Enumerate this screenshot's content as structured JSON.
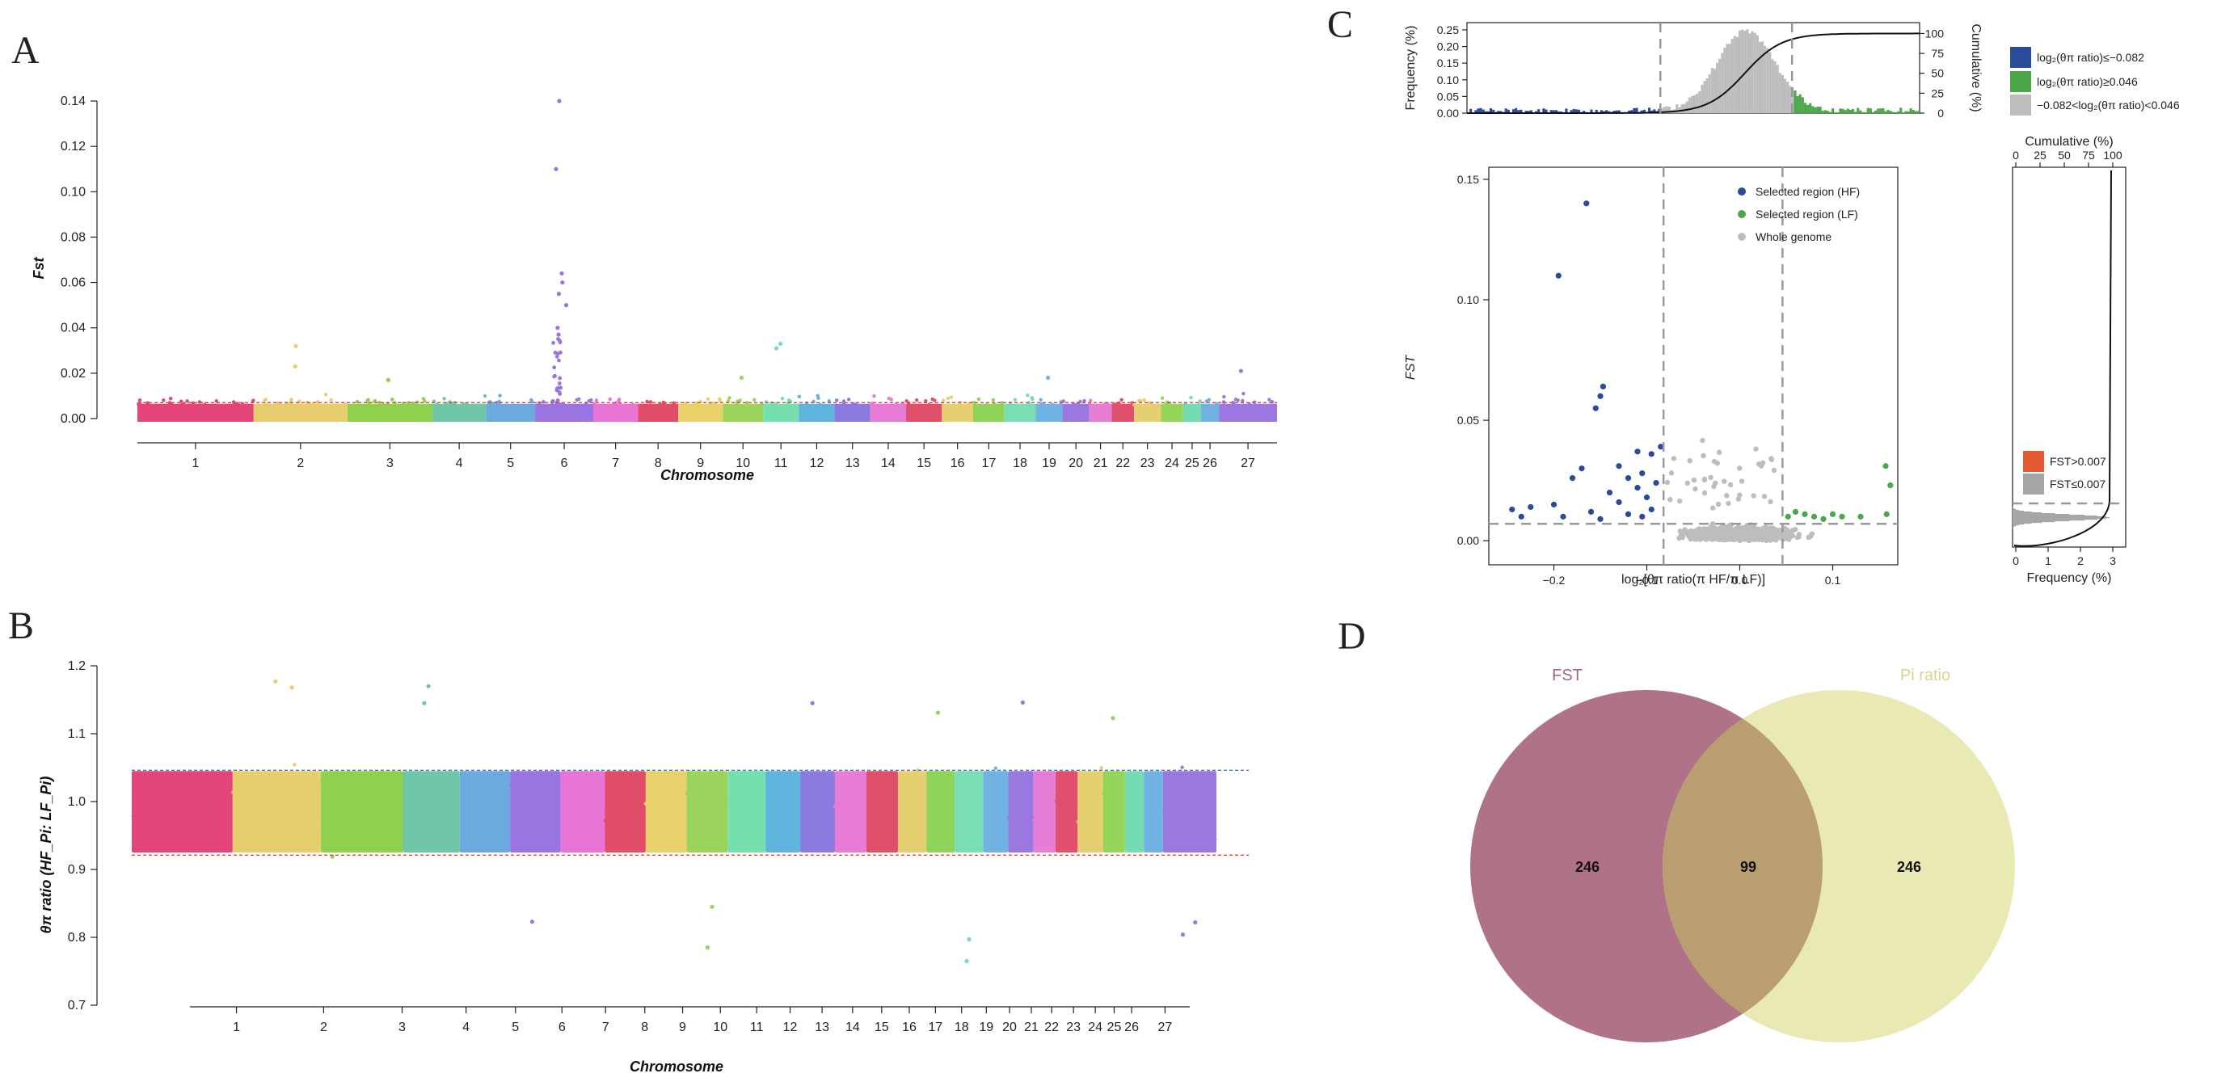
{
  "colors": {
    "chrom": [
      "#e3457a",
      "#e6cd6e",
      "#8fd14f",
      "#6fc7a8",
      "#6ca9df",
      "#9a74e0",
      "#e875d6",
      "#df4d69",
      "#e8d06a",
      "#9bd45d",
      "#76dfb0",
      "#5fb4de",
      "#8c7ae0",
      "#e77bd5",
      "#df4f6a",
      "#e6cf70",
      "#8fd45a",
      "#78dfb4",
      "#70b2e2",
      "#9b78e0",
      "#e77ed6",
      "#e0506c",
      "#e6cf70",
      "#94d55a",
      "#74dcb2",
      "#70b2e2",
      "#9b78e0"
    ],
    "hf": "#2a4a9a",
    "lf": "#4aa84a",
    "whole": "#bdbdbd",
    "fst_high": "#e25a33",
    "fst_low": "#a6a6a6",
    "venn_fst": "#a8667c",
    "venn_pi": "#e2e19a",
    "venn_overlap": "#b99e72",
    "threshold_red": "#e04040",
    "threshold_blue": "#4a7abf"
  },
  "panels": {
    "A": {
      "letter": "A"
    },
    "B": {
      "letter": "B"
    },
    "C": {
      "letter": "C"
    },
    "D": {
      "letter": "D"
    }
  },
  "chart_data": [
    {
      "id": "A",
      "type": "scatter",
      "subtype": "manhattan",
      "xlabel": "Chromosome",
      "ylabel": "Fst",
      "ylim": [
        0,
        0.14
      ],
      "yticks": [
        "0.00",
        "0.02",
        "0.04",
        "0.06",
        "0.08",
        "0.10",
        "0.12",
        "0.14"
      ],
      "categories": [
        "1",
        "2",
        "3",
        "4",
        "5",
        "6",
        "7",
        "8",
        "9",
        "10",
        "11",
        "12",
        "13",
        "14",
        "15",
        "16",
        "17",
        "18",
        "19",
        "20",
        "21",
        "22",
        "23",
        "24",
        "25",
        "26",
        "27"
      ],
      "threshold": 0.007,
      "grid": false,
      "peaks": [
        {
          "chrom": "6",
          "value": 0.14
        },
        {
          "chrom": "6",
          "value": 0.11
        },
        {
          "chrom": "6",
          "value": 0.064
        },
        {
          "chrom": "6",
          "value": 0.06
        },
        {
          "chrom": "6",
          "value": 0.055
        },
        {
          "chrom": "6",
          "value": 0.05
        },
        {
          "chrom": "6",
          "value": 0.04
        },
        {
          "chrom": "6",
          "value": 0.037
        },
        {
          "chrom": "2",
          "value": 0.032
        },
        {
          "chrom": "2",
          "value": 0.023
        },
        {
          "chrom": "11",
          "value": 0.033
        },
        {
          "chrom": "11",
          "value": 0.031
        },
        {
          "chrom": "27",
          "value": 0.021
        },
        {
          "chrom": "10",
          "value": 0.018
        },
        {
          "chrom": "19",
          "value": 0.018
        },
        {
          "chrom": "3",
          "value": 0.017
        }
      ]
    },
    {
      "id": "B",
      "type": "scatter",
      "subtype": "manhattan",
      "xlabel": "Chromosome",
      "ylabel": "θπ ratio (HF_Pi: LF_Pi)",
      "ylim": [
        0.7,
        1.2
      ],
      "yticks": [
        "0.7",
        "0.8",
        "0.9",
        "1.0",
        "1.1",
        "1.2"
      ],
      "categories": [
        "1",
        "2",
        "3",
        "4",
        "5",
        "6",
        "7",
        "8",
        "9",
        "10",
        "11",
        "12",
        "13",
        "14",
        "15",
        "16",
        "17",
        "18",
        "19",
        "20",
        "21",
        "22",
        "23",
        "24",
        "25",
        "26",
        "27"
      ],
      "threshold_upper": 1.046,
      "threshold_lower": 0.921,
      "grid": false,
      "outliers": [
        {
          "chrom": "2",
          "value": 1.177
        },
        {
          "chrom": "2",
          "value": 1.168
        },
        {
          "chrom": "4",
          "value": 1.17
        },
        {
          "chrom": "4",
          "value": 1.145
        },
        {
          "chrom": "13",
          "value": 1.145
        },
        {
          "chrom": "20",
          "value": 1.146
        },
        {
          "chrom": "17",
          "value": 1.131
        },
        {
          "chrom": "24",
          "value": 1.123
        },
        {
          "chrom": "10",
          "value": 0.845
        },
        {
          "chrom": "10",
          "value": 0.785
        },
        {
          "chrom": "18",
          "value": 0.797
        },
        {
          "chrom": "18",
          "value": 0.765
        },
        {
          "chrom": "27",
          "value": 0.804
        },
        {
          "chrom": "6",
          "value": 0.823
        },
        {
          "chrom": "27",
          "value": 0.822
        }
      ]
    },
    {
      "id": "C_main",
      "type": "scatter",
      "xlabel": "log₂[θπ ratio(π HF/π LF)]",
      "ylabel": "FST",
      "xlim": [
        -0.27,
        0.17
      ],
      "ylim": [
        -0.01,
        0.155
      ],
      "xticks": [
        "−0.2",
        "−0.1",
        "0.0",
        "0.1"
      ],
      "yticks": [
        "0.00",
        "0.05",
        "0.10",
        "0.15"
      ],
      "vlines": [
        -0.082,
        0.046
      ],
      "hline": 0.007,
      "legend_position": "top-right",
      "series": [
        {
          "name": "Selected region (HF)",
          "points": [
            [
              -0.165,
              0.14
            ],
            [
              -0.195,
              0.11
            ],
            [
              -0.147,
              0.064
            ],
            [
              -0.15,
              0.06
            ],
            [
              -0.155,
              0.055
            ],
            [
              -0.11,
              0.037
            ],
            [
              -0.095,
              0.036
            ],
            [
              -0.13,
              0.031
            ],
            [
              -0.085,
              0.039
            ],
            [
              -0.17,
              0.03
            ],
            [
              -0.12,
              0.026
            ],
            [
              -0.105,
              0.028
            ],
            [
              -0.18,
              0.026
            ],
            [
              -0.09,
              0.024
            ],
            [
              -0.11,
              0.022
            ],
            [
              -0.14,
              0.02
            ],
            [
              -0.1,
              0.018
            ],
            [
              -0.13,
              0.016
            ],
            [
              -0.2,
              0.015
            ],
            [
              -0.225,
              0.014
            ],
            [
              -0.245,
              0.013
            ],
            [
              -0.235,
              0.01
            ],
            [
              -0.16,
              0.012
            ],
            [
              -0.12,
              0.011
            ],
            [
              -0.095,
              0.013
            ],
            [
              -0.15,
              0.009
            ],
            [
              -0.105,
              0.01
            ],
            [
              -0.19,
              0.01
            ]
          ]
        },
        {
          "name": "Selected region (LF)",
          "points": [
            [
              0.157,
              0.031
            ],
            [
              0.162,
              0.023
            ],
            [
              0.158,
              0.011
            ],
            [
              0.06,
              0.012
            ],
            [
              0.07,
              0.011
            ],
            [
              0.08,
              0.01
            ],
            [
              0.1,
              0.011
            ],
            [
              0.11,
              0.01
            ],
            [
              0.09,
              0.009
            ],
            [
              0.052,
              0.01
            ],
            [
              0.13,
              0.01
            ]
          ]
        },
        {
          "name": "Whole genome",
          "points": []
        }
      ]
    },
    {
      "id": "C_top",
      "type": "area",
      "xlabel": "",
      "ylabel": "Frequency (%)",
      "ylabel_right": "Cumulative (%)",
      "yticks": [
        "0.00",
        "0.05",
        "0.10",
        "0.15",
        "0.20",
        "0.25"
      ],
      "yticks_right": [
        "0",
        "25",
        "50",
        "75",
        "100"
      ],
      "legend_position": "right",
      "legend": [
        {
          "label": "log₂(θπ ratio)≤−0.082",
          "color": "#2a4a9a"
        },
        {
          "label": "log₂(θπ ratio)≥0.046",
          "color": "#4aa84a"
        },
        {
          "label": "−0.082<log₂(θπ ratio)<0.046",
          "color": "#bdbdbd"
        }
      ]
    },
    {
      "id": "C_right",
      "type": "area",
      "xlabel": "Frequency (%)",
      "xlabel_top": "Cumulative (%)",
      "xticks": [
        "0",
        "1",
        "2",
        "3"
      ],
      "xticks_top": [
        "0",
        "25",
        "50",
        "75",
        "100"
      ],
      "legend_position": "center",
      "legend": [
        {
          "label": "FST>0.007",
          "color": "#e25a33"
        },
        {
          "label": "FST≤0.007",
          "color": "#a6a6a6"
        }
      ]
    },
    {
      "id": "D",
      "type": "venn",
      "sets": [
        {
          "name": "FST",
          "count": 246
        },
        {
          "name": "Pi ratio",
          "count": 246
        }
      ],
      "overlap": 99
    }
  ]
}
